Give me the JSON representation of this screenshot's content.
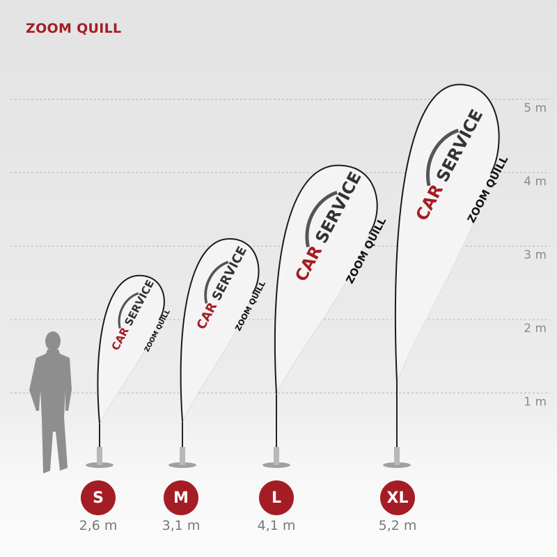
{
  "brand_title": "ZOOM QUILL",
  "accent_color": "#a51d24",
  "scale": {
    "labels": [
      "1 m",
      "2 m",
      "3 m",
      "4 m",
      "5 m"
    ],
    "values": [
      1,
      2,
      3,
      4,
      5
    ]
  },
  "flag_print": {
    "brand": "CAR SERVICE",
    "product": "ZOOM QUILL"
  },
  "sizes": [
    {
      "label": "S",
      "height": "2,6 m",
      "meters": 2.6
    },
    {
      "label": "M",
      "height": "3,1 m",
      "meters": 3.1
    },
    {
      "label": "L",
      "height": "4,1 m",
      "meters": 4.1
    },
    {
      "label": "XL",
      "height": "5,2 m",
      "meters": 5.2
    }
  ]
}
